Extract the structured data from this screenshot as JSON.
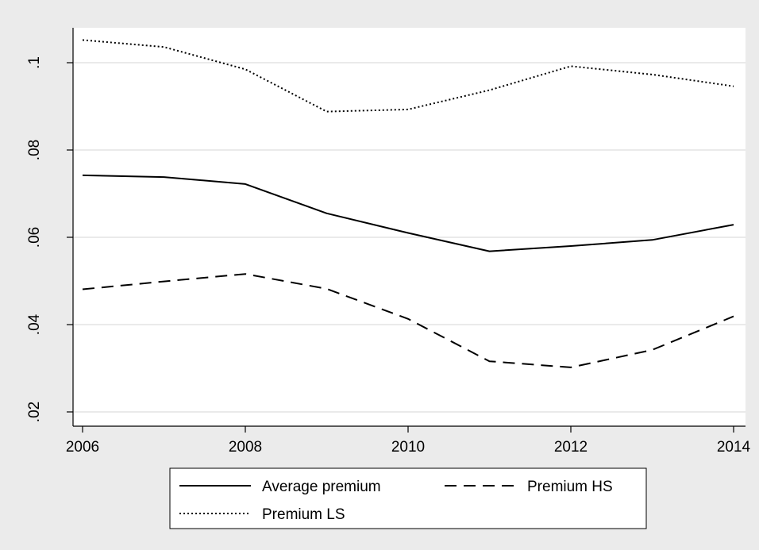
{
  "chart_data": {
    "type": "line",
    "x": [
      2006,
      2007,
      2008,
      2009,
      2010,
      2011,
      2012,
      2013,
      2014
    ],
    "xlim": [
      2006,
      2014
    ],
    "ylim": [
      0.02,
      0.1
    ],
    "x_ticks": [
      2006,
      2008,
      2010,
      2012,
      2014
    ],
    "x_tick_labels": [
      "2006",
      "2008",
      "2010",
      "2012",
      "2014"
    ],
    "y_ticks": [
      0.02,
      0.04,
      0.06,
      0.08,
      0.1
    ],
    "y_tick_labels": [
      ".02",
      ".04",
      ".06",
      ".08",
      ".1"
    ],
    "grid": true,
    "legend_position": "bottom",
    "series": [
      {
        "name": "Average premium",
        "style": "solid",
        "values": [
          0.0742,
          0.0738,
          0.0722,
          0.0655,
          0.061,
          0.0568,
          0.058,
          0.0594,
          0.0629
        ]
      },
      {
        "name": "Premium HS",
        "style": "dashed",
        "values": [
          0.0481,
          0.0499,
          0.0516,
          0.0482,
          0.0413,
          0.0316,
          0.0302,
          0.0342,
          0.0419
        ]
      },
      {
        "name": "Premium LS",
        "style": "dotted",
        "values": [
          0.1052,
          0.1036,
          0.0985,
          0.0888,
          0.0893,
          0.0937,
          0.0992,
          0.0973,
          0.0946
        ]
      }
    ],
    "colors": {
      "background": "#ebebeb",
      "plot_area": "#ffffff",
      "grid": "#eaeaea",
      "line": "#000000"
    }
  }
}
